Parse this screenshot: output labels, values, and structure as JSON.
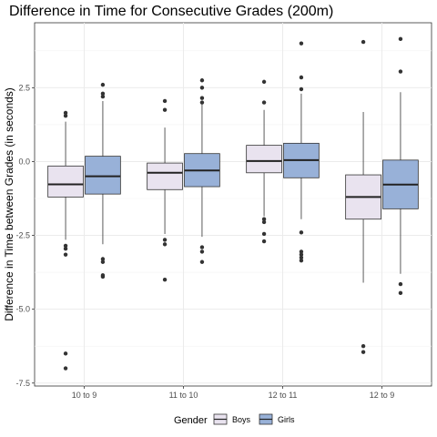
{
  "chart_data": {
    "type": "boxplot",
    "title": "Difference in Time for Consecutive Grades (200m)",
    "xlabel": "",
    "ylabel": "Difference in Time between Grades (in seconds)",
    "ylim": [
      -7.6,
      4.7
    ],
    "y_ticks": [
      2.5,
      0.0,
      -2.5,
      -5.0,
      -7.5
    ],
    "y_tick_labels": [
      "2.5",
      "0.0",
      "-2.5",
      "-5.0",
      "-7.5"
    ],
    "grid": true,
    "categories": [
      "10 to 9",
      "11 to 10",
      "12 to 11",
      "12 to 9"
    ],
    "legend": {
      "title": "Gender",
      "position": "bottom",
      "entries": [
        "Boys",
        "Girls"
      ]
    },
    "series": [
      {
        "name": "Boys",
        "color": "#e9e3ef",
        "boxes": [
          {
            "q1": -1.2,
            "median": -0.77,
            "q3": -0.15,
            "whisker_low": -2.65,
            "whisker_high": 1.35,
            "outliers": [
              1.65,
              1.55,
              -2.85,
              -2.95,
              -3.15,
              -6.5,
              -7.0
            ]
          },
          {
            "q1": -0.95,
            "median": -0.38,
            "q3": -0.05,
            "whisker_low": -2.45,
            "whisker_high": 1.15,
            "outliers": [
              2.05,
              1.75,
              -2.65,
              -2.8,
              -4.0
            ]
          },
          {
            "q1": -0.38,
            "median": 0.02,
            "q3": 0.55,
            "whisker_low": -1.85,
            "whisker_high": 1.75,
            "outliers": [
              2.7,
              2.0,
              -1.95,
              -2.05,
              -2.45,
              -2.7
            ]
          },
          {
            "q1": -1.95,
            "median": -1.2,
            "q3": -0.45,
            "whisker_low": -4.1,
            "whisker_high": 1.68,
            "outliers": [
              4.05,
              -6.25,
              -6.45
            ]
          }
        ]
      },
      {
        "name": "Girls",
        "color": "#98b1d8",
        "boxes": [
          {
            "q1": -1.1,
            "median": -0.5,
            "q3": 0.18,
            "whisker_low": -2.8,
            "whisker_high": 2.05,
            "outliers": [
              2.6,
              2.3,
              2.2,
              -3.3,
              -3.4,
              -3.85,
              -3.9
            ]
          },
          {
            "q1": -0.85,
            "median": -0.3,
            "q3": 0.27,
            "whisker_low": -2.55,
            "whisker_high": 1.95,
            "outliers": [
              2.75,
              2.5,
              2.15,
              2.0,
              -2.9,
              -3.05,
              -3.4
            ]
          },
          {
            "q1": -0.55,
            "median": 0.05,
            "q3": 0.62,
            "whisker_low": -1.95,
            "whisker_high": 2.3,
            "outliers": [
              4.0,
              2.85,
              2.45,
              -2.4,
              -3.05,
              -3.15,
              -3.25,
              -3.35
            ]
          },
          {
            "q1": -1.6,
            "median": -0.78,
            "q3": 0.05,
            "whisker_low": -3.8,
            "whisker_high": 2.35,
            "outliers": [
              4.15,
              3.05,
              -4.15,
              -4.45
            ]
          }
        ]
      }
    ]
  }
}
